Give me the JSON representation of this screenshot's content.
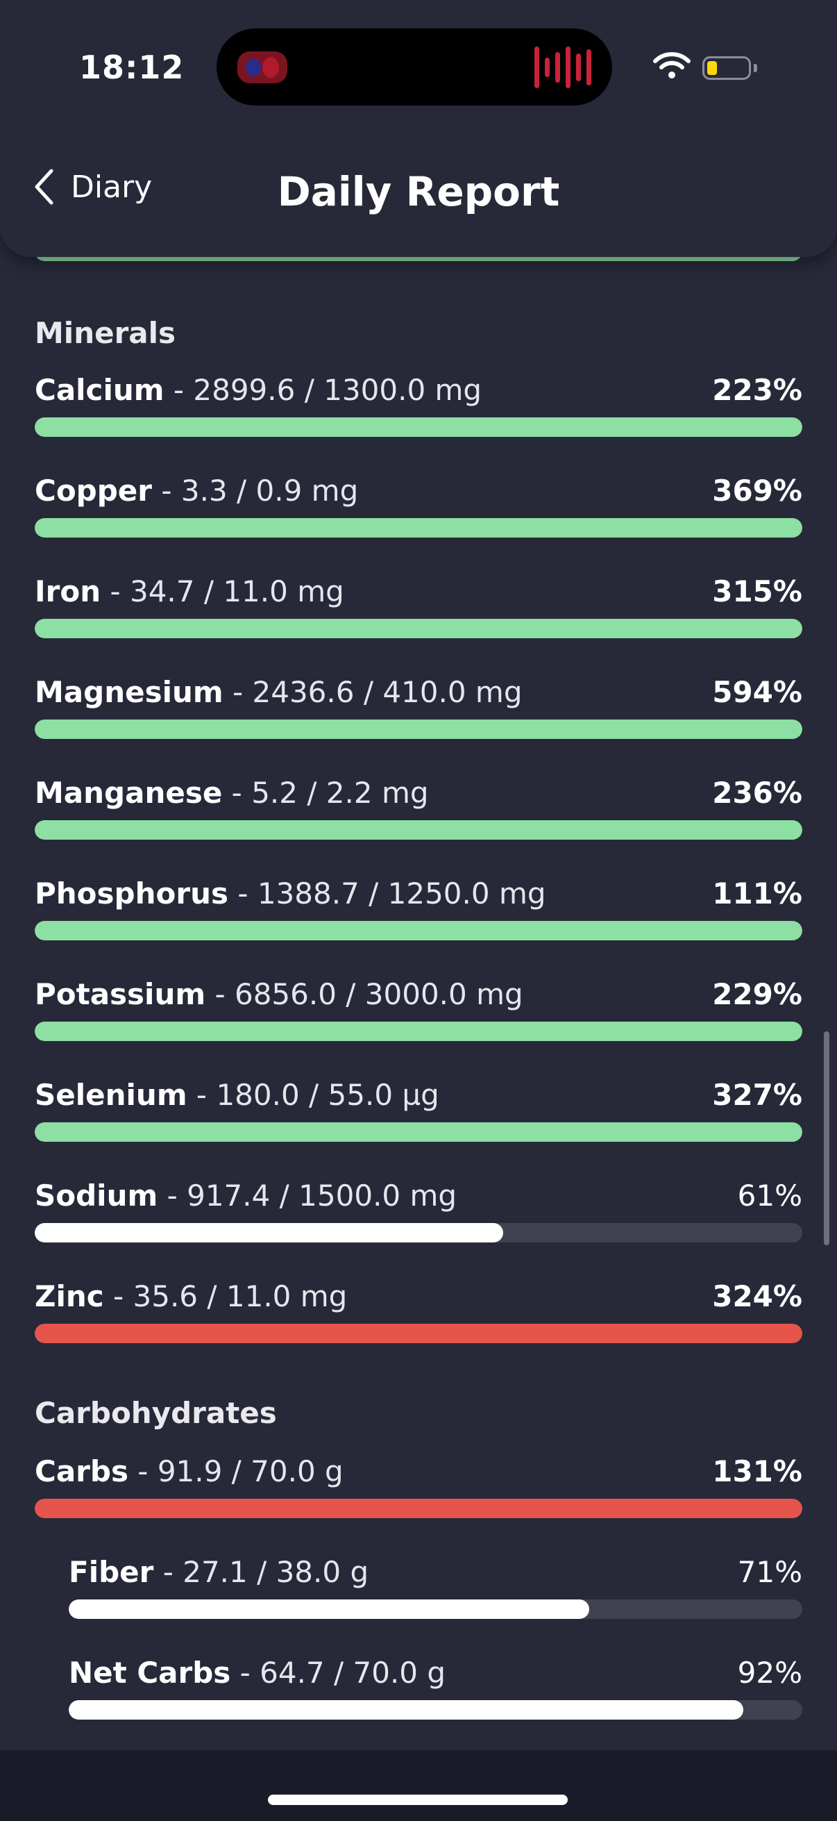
{
  "status_bar": {
    "time": "18:12"
  },
  "header": {
    "back_label": "Diary",
    "title": "Daily Report"
  },
  "colors": {
    "met": "#8ddfa3",
    "under": "#ffffff",
    "over": "#e5554b",
    "track": "#40424f",
    "background": "#272939"
  },
  "partial_top_bar": {
    "percent": 100,
    "status": "met"
  },
  "sections": [
    {
      "title": "Minerals",
      "rows": [
        {
          "name": "Calcium",
          "value": "2899.6 / 1300.0 mg",
          "percent_label": "223%",
          "percent": 223,
          "status": "met"
        },
        {
          "name": "Copper",
          "value": "3.3 / 0.9 mg",
          "percent_label": "369%",
          "percent": 369,
          "status": "met"
        },
        {
          "name": "Iron",
          "value": "34.7 / 11.0 mg",
          "percent_label": "315%",
          "percent": 315,
          "status": "met"
        },
        {
          "name": "Magnesium",
          "value": "2436.6 / 410.0 mg",
          "percent_label": "594%",
          "percent": 594,
          "status": "met"
        },
        {
          "name": "Manganese",
          "value": "5.2 / 2.2 mg",
          "percent_label": "236%",
          "percent": 236,
          "status": "met"
        },
        {
          "name": "Phosphorus",
          "value": "1388.7 / 1250.0 mg",
          "percent_label": "111%",
          "percent": 111,
          "status": "met"
        },
        {
          "name": "Potassium",
          "value": "6856.0 / 3000.0 mg",
          "percent_label": "229%",
          "percent": 229,
          "status": "met"
        },
        {
          "name": "Selenium",
          "value": "180.0 / 55.0 µg",
          "percent_label": "327%",
          "percent": 327,
          "status": "met"
        },
        {
          "name": "Sodium",
          "value": "917.4 / 1500.0 mg",
          "percent_label": "61%",
          "percent": 61,
          "status": "under"
        },
        {
          "name": "Zinc",
          "value": "35.6 / 11.0 mg",
          "percent_label": "324%",
          "percent": 324,
          "status": "over"
        }
      ]
    },
    {
      "title": "Carbohydrates",
      "rows": [
        {
          "name": "Carbs",
          "value": "91.9 / 70.0 g",
          "percent_label": "131%",
          "percent": 131,
          "status": "over"
        },
        {
          "name": "Fiber",
          "value": "27.1 / 38.0 g",
          "percent_label": "71%",
          "percent": 71,
          "status": "under",
          "sub": true
        },
        {
          "name": "Net Carbs",
          "value": "64.7 / 70.0 g",
          "percent_label": "92%",
          "percent": 92,
          "status": "under",
          "sub": true
        }
      ]
    }
  ]
}
